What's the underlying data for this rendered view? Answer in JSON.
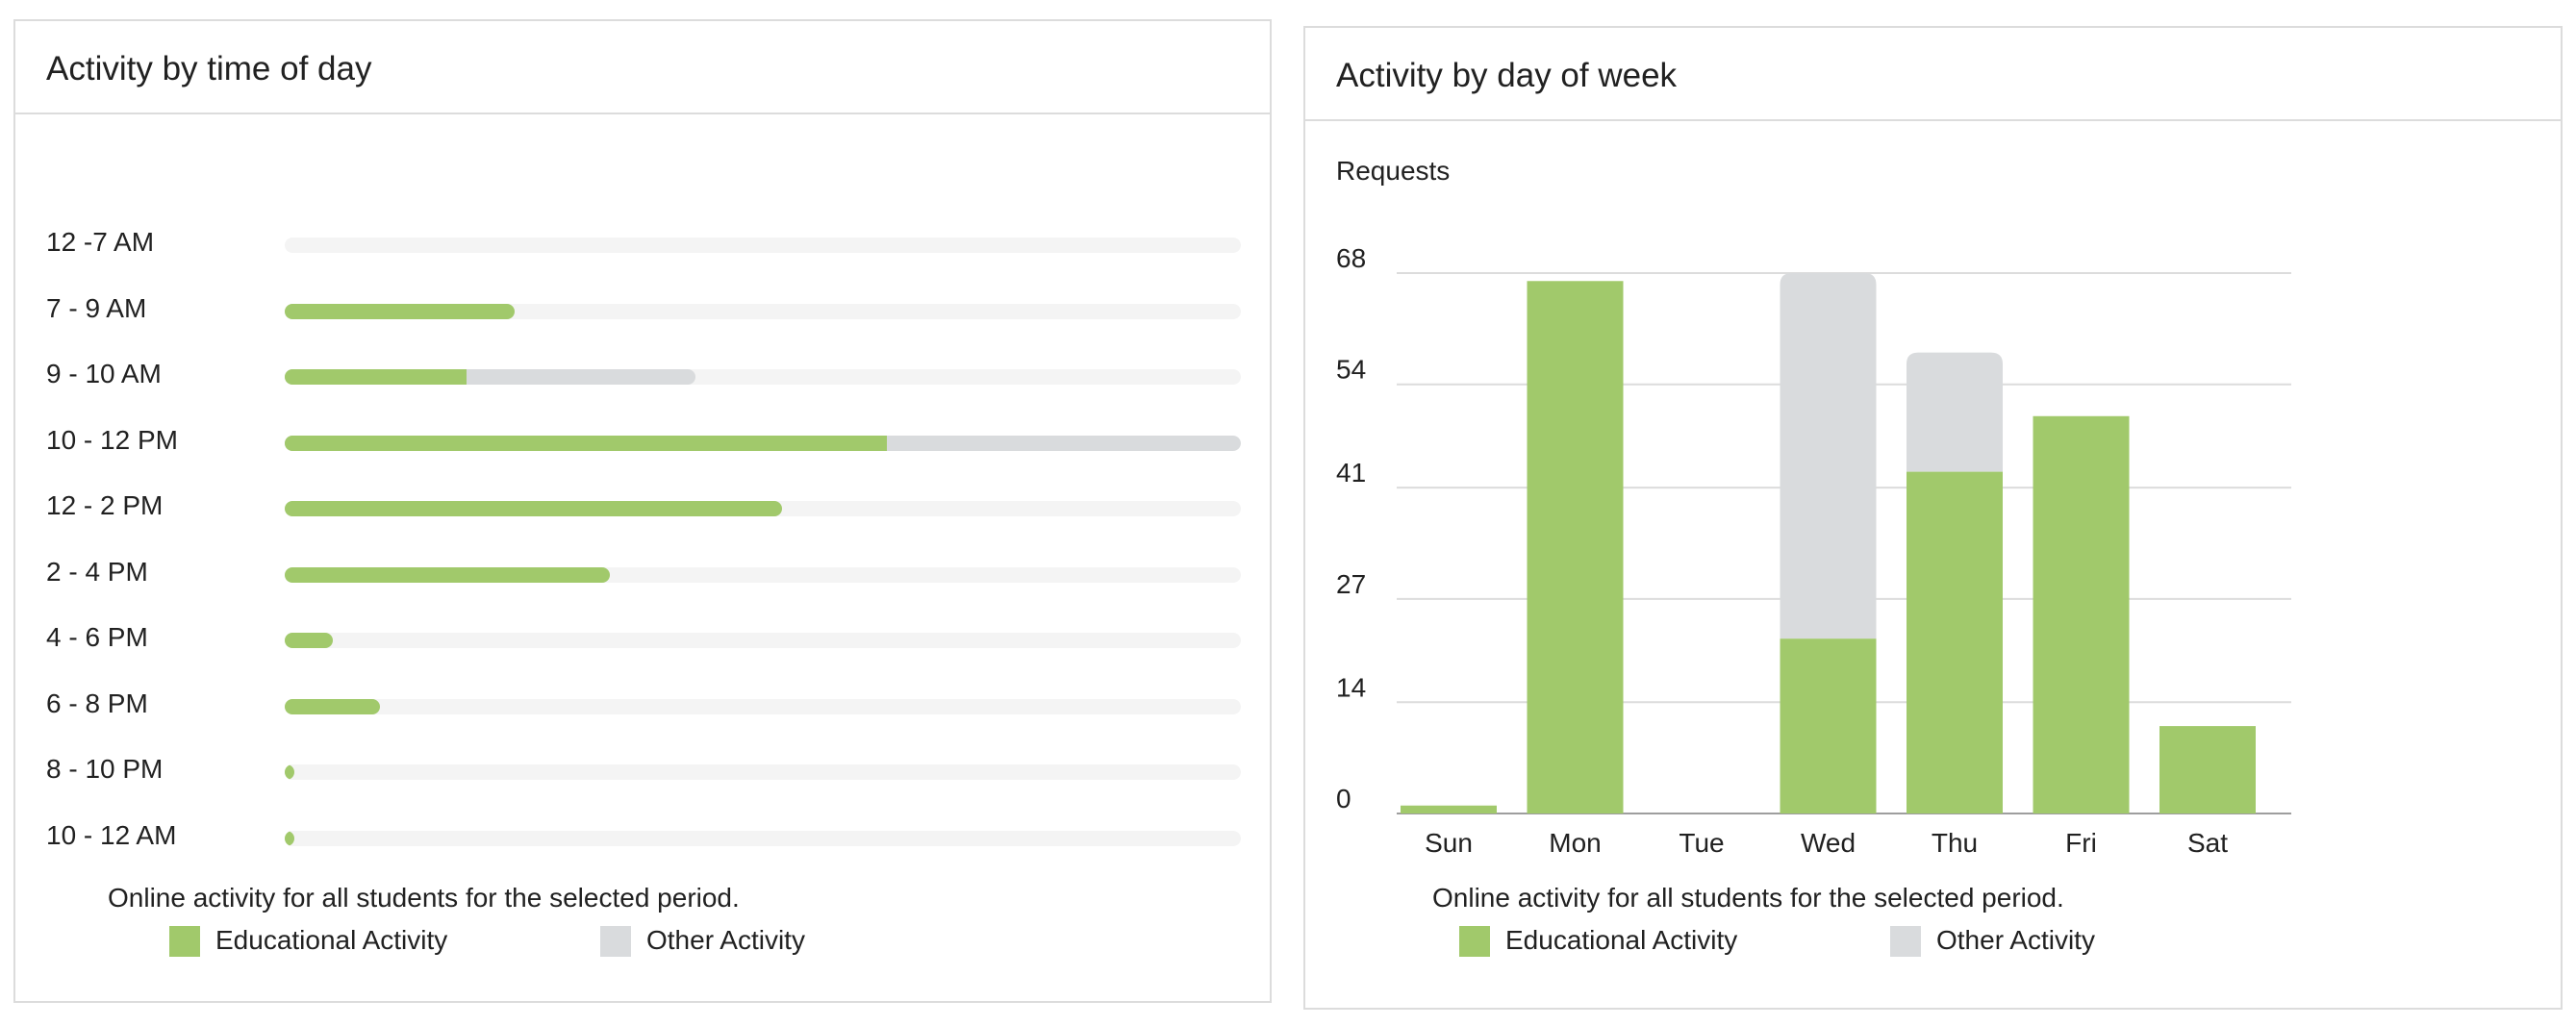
{
  "chart_data": [
    {
      "type": "bar",
      "orientation": "horizontal",
      "stacked": true,
      "title": "Activity by time of day",
      "categories": [
        "12 -7 AM",
        "7 - 9 AM",
        "9 - 10 AM",
        "10 - 12 PM",
        "12 - 2 PM",
        "2 - 4 PM",
        "4 - 6 PM",
        "6 - 8 PM",
        "8 - 10 PM",
        "10 - 12 AM"
      ],
      "series": [
        {
          "name": "Educational Activity",
          "values": [
            0,
            24,
            19,
            63,
            52,
            34,
            5,
            10,
            1,
            1
          ]
        },
        {
          "name": "Other Activity",
          "values": [
            0,
            0,
            24,
            37,
            0,
            0,
            0,
            0,
            0,
            0
          ]
        }
      ],
      "xlim": [
        0,
        100
      ],
      "caption": "Online activity for all students for the selected period.",
      "legend": "bottom",
      "grid": false
    },
    {
      "type": "bar",
      "stacked": true,
      "title": "Activity by day of week",
      "ylabel": "Requests",
      "categories": [
        "Sun",
        "Mon",
        "Tue",
        "Wed",
        "Thu",
        "Fri",
        "Sat"
      ],
      "series": [
        {
          "name": "Educational Activity",
          "values": [
            1,
            67,
            0,
            22,
            43,
            50,
            11
          ]
        },
        {
          "name": "Other Activity",
          "values": [
            0,
            0,
            0,
            46,
            15,
            0,
            0
          ]
        }
      ],
      "yticks": [
        "0",
        "14",
        "27",
        "41",
        "54",
        "68"
      ],
      "ylim": [
        0,
        68
      ],
      "caption": "Online activity for all students for the selected period.",
      "legend": "bottom",
      "grid": true
    }
  ],
  "colors": {
    "educational": "#a1c96b",
    "other": "#d9dbdd",
    "track": "#f4f4f4",
    "grid": "#dcdcdc",
    "axis": "#9e9e9e"
  },
  "legend": {
    "educational": "Educational Activity",
    "other": "Other Activity"
  }
}
